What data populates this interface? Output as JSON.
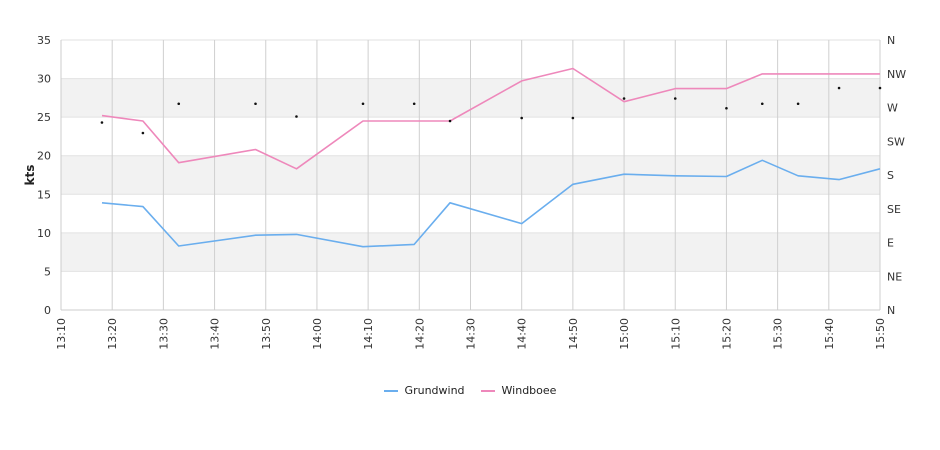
{
  "chart_data": {
    "type": "line",
    "ylabel": "kts",
    "ylim": [
      0,
      35
    ],
    "yticks": [
      0,
      5,
      10,
      15,
      20,
      25,
      30,
      35
    ],
    "xlim": [
      "13:10",
      "15:50"
    ],
    "xticks": [
      "13:10",
      "13:20",
      "13:30",
      "13:40",
      "13:50",
      "14:00",
      "14:10",
      "14:20",
      "14:30",
      "14:40",
      "14:50",
      "15:00",
      "15:10",
      "15:20",
      "15:30",
      "15:40",
      "15:50"
    ],
    "direction_axis": {
      "labels": [
        "N",
        "NE",
        "E",
        "SE",
        "S",
        "SW",
        "W",
        "NW",
        "N"
      ],
      "range_deg": [
        0,
        360
      ]
    },
    "grid": true,
    "legend_position": "bottom",
    "series": [
      {
        "name": "Grundwind",
        "color": "#6aaeee",
        "x": [
          "13:18",
          "13:26",
          "13:33",
          "13:48",
          "13:56",
          "14:09",
          "14:19",
          "14:26",
          "14:40",
          "14:50",
          "15:00",
          "15:10",
          "15:20",
          "15:27",
          "15:34",
          "15:42",
          "15:50"
        ],
        "values": [
          13.9,
          13.4,
          8.3,
          9.7,
          9.8,
          8.2,
          8.5,
          13.9,
          11.2,
          16.3,
          17.6,
          17.4,
          17.3,
          19.4,
          17.4,
          16.9,
          18.3
        ]
      },
      {
        "name": "Windboee",
        "color": "#ee88bb",
        "x": [
          "13:18",
          "13:26",
          "13:33",
          "13:48",
          "13:56",
          "14:09",
          "14:19",
          "14:26",
          "14:40",
          "14:50",
          "15:00",
          "15:10",
          "15:20",
          "15:27",
          "15:34",
          "15:42",
          "15:50"
        ],
        "values": [
          25.2,
          24.5,
          19.1,
          20.8,
          18.3,
          24.5,
          24.5,
          24.5,
          29.7,
          31.3,
          27.0,
          28.7,
          28.7,
          30.6,
          30.6,
          30.6,
          30.6
        ]
      }
    ],
    "direction_points": {
      "x": [
        "13:18",
        "13:26",
        "13:33",
        "13:48",
        "13:56",
        "14:09",
        "14:19",
        "14:26",
        "14:40",
        "14:50",
        "15:00",
        "15:10",
        "15:20",
        "15:27",
        "15:34",
        "15:42",
        "15:50"
      ],
      "degrees": [
        250,
        236,
        275,
        275,
        258,
        275,
        275,
        252,
        256,
        256,
        282,
        282,
        269,
        275,
        275,
        296,
        296
      ]
    }
  }
}
